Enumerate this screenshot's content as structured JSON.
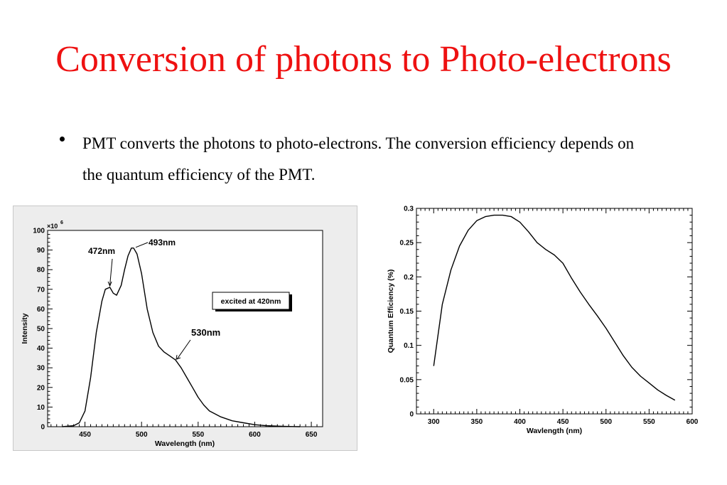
{
  "slide": {
    "title": "Conversion of photons to Photo-electrons",
    "bullet": "PMT converts the photons to photo-electrons. The conversion efficiency depends on the quantum efficiency of the PMT."
  },
  "chart_data": [
    {
      "type": "line",
      "xlabel": "Wavelength (nm)",
      "ylabel": "Intensity",
      "y_multiplier_label": "×10",
      "y_multiplier_exp": "6",
      "xlim": [
        417,
        660
      ],
      "ylim": [
        0,
        100
      ],
      "xticks": [
        450,
        500,
        550,
        600,
        650
      ],
      "yticks": [
        0,
        10,
        20,
        30,
        40,
        50,
        60,
        70,
        80,
        90,
        100
      ],
      "grid": false,
      "legend_box": "excited at 420nm",
      "annotations": [
        {
          "label": "472nm",
          "x": 472,
          "y": 71
        },
        {
          "label": "493nm",
          "x": 493,
          "y": 91
        },
        {
          "label": "530nm",
          "x": 530,
          "y": 34
        }
      ],
      "series": [
        {
          "x": [
            430,
            440,
            445,
            450,
            455,
            460,
            465,
            468,
            472,
            475,
            478,
            482,
            485,
            488,
            491,
            493,
            496,
            500,
            505,
            510,
            515,
            520,
            525,
            530,
            535,
            540,
            545,
            550,
            555,
            560,
            570,
            580,
            590,
            600,
            610,
            620,
            630,
            640
          ],
          "y": [
            0,
            0.5,
            2,
            8,
            25,
            48,
            64,
            70,
            71,
            68,
            67,
            72,
            80,
            87,
            91,
            91,
            88,
            78,
            60,
            48,
            41,
            38,
            36,
            34,
            30,
            25,
            20,
            15,
            11,
            8,
            5,
            3,
            2,
            1,
            0.5,
            0.3,
            0.1,
            0
          ]
        }
      ]
    },
    {
      "type": "line",
      "xlabel": "Wavlength (nm)",
      "ylabel": "Quantum Efficiency (%)",
      "xlim": [
        280,
        600
      ],
      "ylim": [
        0,
        0.3
      ],
      "xticks": [
        300,
        350,
        400,
        450,
        500,
        550,
        600
      ],
      "yticks": [
        0,
        0.05,
        0.1,
        0.15,
        0.2,
        0.25,
        0.3
      ],
      "grid": false,
      "series": [
        {
          "x": [
            300,
            310,
            320,
            330,
            340,
            350,
            360,
            370,
            380,
            390,
            400,
            410,
            420,
            430,
            440,
            450,
            460,
            470,
            480,
            490,
            500,
            510,
            520,
            530,
            540,
            550,
            560,
            570,
            580
          ],
          "y": [
            0.07,
            0.16,
            0.21,
            0.245,
            0.268,
            0.282,
            0.288,
            0.29,
            0.29,
            0.288,
            0.28,
            0.266,
            0.25,
            0.24,
            0.232,
            0.22,
            0.198,
            0.178,
            0.16,
            0.143,
            0.125,
            0.105,
            0.085,
            0.068,
            0.055,
            0.045,
            0.035,
            0.027,
            0.02
          ]
        }
      ]
    }
  ]
}
